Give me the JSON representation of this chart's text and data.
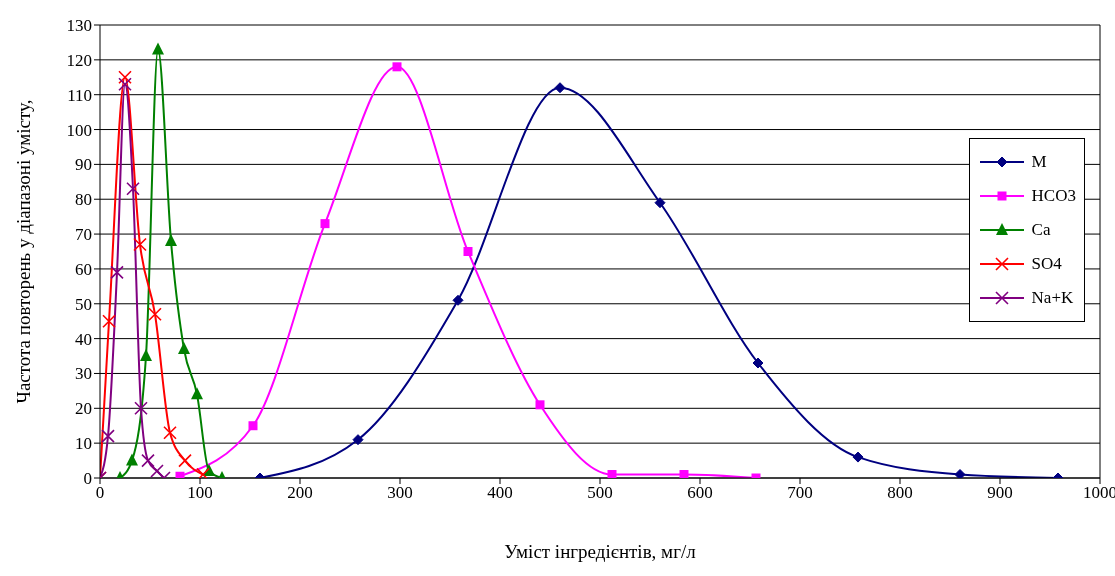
{
  "chart_data": {
    "type": "line",
    "xlabel": "Уміст інгредієнтів, мг/л",
    "ylabel": "Частота повторень у діапазоні умісту,",
    "xlim": [
      0,
      1000
    ],
    "xticks": [
      0,
      100,
      200,
      300,
      400,
      500,
      600,
      700,
      800,
      900,
      1000
    ],
    "ylim": [
      0,
      130
    ],
    "yticks": [
      0,
      10,
      20,
      30,
      40,
      50,
      60,
      70,
      80,
      90,
      100,
      110,
      120,
      130
    ],
    "grid": "y",
    "legend": "right",
    "series": [
      {
        "name": "M",
        "color": "#000080",
        "marker": "diamond",
        "x": [
          160,
          258,
          358,
          460,
          560,
          658,
          758,
          860,
          958
        ],
        "values": [
          0,
          11,
          51,
          112,
          79,
          33,
          6,
          1,
          0
        ]
      },
      {
        "name": "HCO3",
        "color": "#ff00ff",
        "marker": "square",
        "x": [
          80,
          153,
          225,
          297,
          368,
          440,
          512,
          584,
          656
        ],
        "values": [
          0.5,
          15,
          73,
          118,
          65,
          21,
          1,
          1,
          0
        ]
      },
      {
        "name": "Ca",
        "color": "#008000",
        "marker": "triangle",
        "x": [
          20,
          32,
          46,
          58,
          71,
          84,
          97,
          109,
          122
        ],
        "values": [
          0,
          5,
          35,
          123,
          68,
          37,
          24,
          2,
          0
        ]
      },
      {
        "name": "SO4",
        "color": "#ff0000",
        "marker": "cross",
        "x": [
          0,
          9,
          25,
          40,
          55,
          70,
          85,
          103
        ],
        "values": [
          0,
          45,
          115,
          67,
          47,
          13,
          5,
          1
        ]
      },
      {
        "name": "Na+K",
        "color": "#800080",
        "marker": "cross",
        "x": [
          0,
          8,
          17,
          25,
          33,
          41,
          48,
          57,
          64
        ],
        "values": [
          0,
          12,
          59,
          113,
          83,
          20,
          5,
          2,
          0
        ]
      }
    ]
  }
}
